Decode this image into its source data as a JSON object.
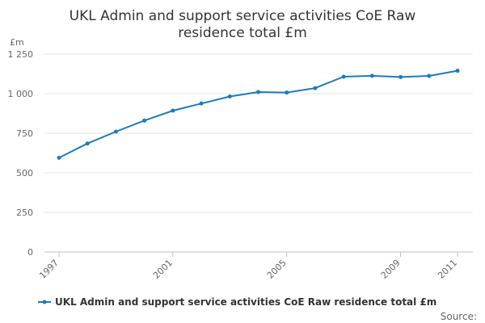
{
  "colors": {
    "series": "#1f7bb6"
  },
  "chart_data": {
    "type": "line",
    "title_lines": [
      "UKL Admin and support service activities CoE Raw",
      "residence total £m"
    ],
    "ylabel": "£m",
    "ylim": [
      0,
      1250
    ],
    "yticks": [
      0,
      250,
      500,
      750,
      1000,
      1250
    ],
    "ytick_labels": [
      "0",
      "250",
      "500",
      "750",
      "1 000",
      "1 250"
    ],
    "x": [
      1997,
      1998,
      1999,
      2000,
      2001,
      2002,
      2003,
      2004,
      2005,
      2006,
      2007,
      2008,
      2009,
      2010,
      2011
    ],
    "xlim": [
      1997,
      2011
    ],
    "xtick_labels": [
      "1997",
      "2001",
      "2005",
      "2009",
      "2011"
    ],
    "grid": true,
    "legend_position": "bottom",
    "series": [
      {
        "name": "UKL Admin and support service activities CoE Raw residence total £m",
        "values": [
          595,
          685,
          760,
          830,
          893,
          938,
          982,
          1010,
          1007,
          1035,
          1107,
          1113,
          1105,
          1112,
          1145
        ]
      }
    ],
    "source_label": "Source:"
  }
}
